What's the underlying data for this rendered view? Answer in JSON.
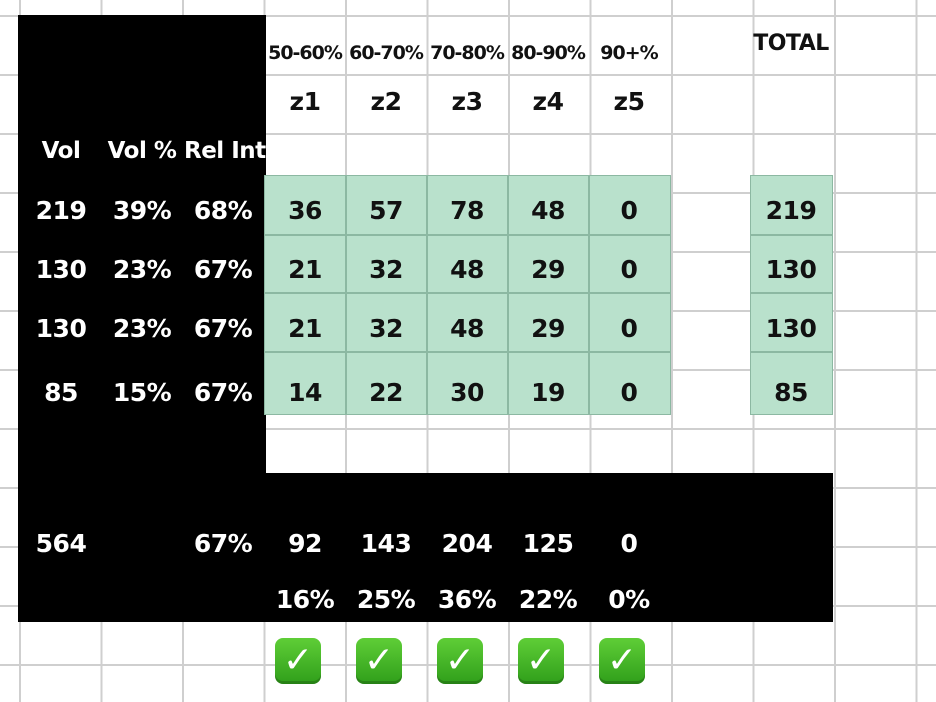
{
  "zones": [
    {
      "range": "50-60%",
      "label": "z1"
    },
    {
      "range": "60-70%",
      "label": "z2"
    },
    {
      "range": "70-80%",
      "label": "z3"
    },
    {
      "range": "80-90%",
      "label": "z4"
    },
    {
      "range": "90+%",
      "label": "z5"
    }
  ],
  "total_header": "TOTAL",
  "left_headers": {
    "vol": "Vol",
    "vol_pct": "Vol %",
    "rel_int": "Rel Int"
  },
  "rows": [
    {
      "vol": "219",
      "vol_pct": "39%",
      "rel_int": "68%",
      "zones": [
        "36",
        "57",
        "78",
        "48",
        "0"
      ],
      "total": "219"
    },
    {
      "vol": "130",
      "vol_pct": "23%",
      "rel_int": "67%",
      "zones": [
        "21",
        "32",
        "48",
        "29",
        "0"
      ],
      "total": "130"
    },
    {
      "vol": "130",
      "vol_pct": "23%",
      "rel_int": "67%",
      "zones": [
        "21",
        "32",
        "48",
        "29",
        "0"
      ],
      "total": "130"
    },
    {
      "vol": "85",
      "vol_pct": "15%",
      "rel_int": "67%",
      "zones": [
        "14",
        "22",
        "30",
        "19",
        "0"
      ],
      "total": "85"
    }
  ],
  "summary": {
    "vol": "564",
    "rel_int": "67%",
    "zone_totals": [
      "92",
      "143",
      "204",
      "125",
      "0"
    ],
    "zone_pcts": [
      "16%",
      "25%",
      "36%",
      "22%",
      "0%"
    ]
  },
  "check_icon": "check-mark-button-icon",
  "colors": {
    "green_fill": "#b9e1cc",
    "black": "#000000",
    "check_green": "#3cb02a"
  }
}
